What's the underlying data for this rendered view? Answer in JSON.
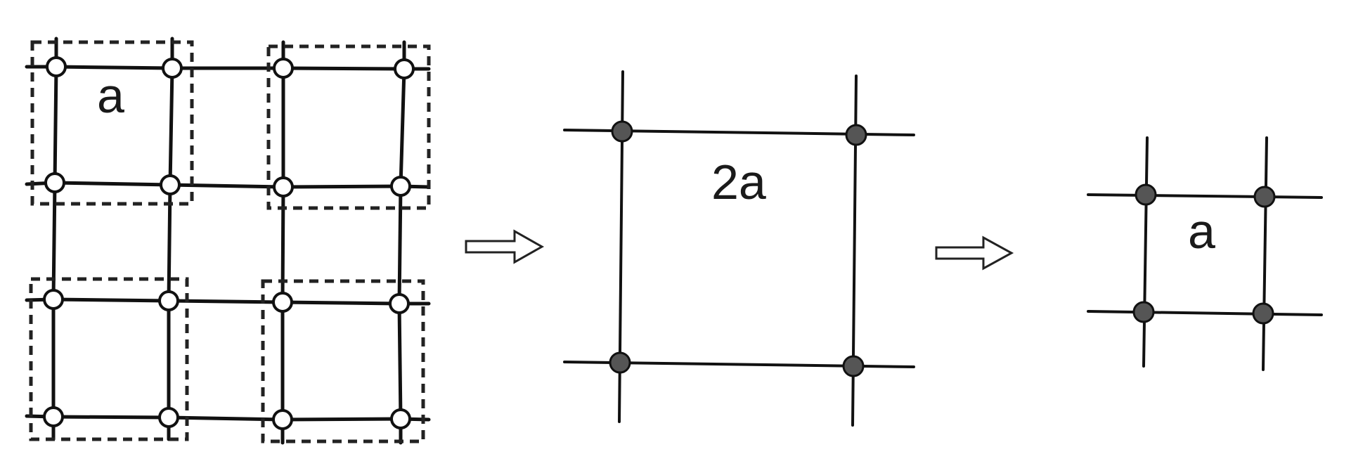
{
  "panels": {
    "original_lattice": {
      "spacing_label": "a",
      "site_style": "open-circle",
      "grid_size": "4x4"
    },
    "blocked_lattice": {
      "spacing_label": "2a",
      "site_style": "filled-circle",
      "grid_size": "2x2"
    },
    "rescaled_lattice": {
      "spacing_label": "a",
      "site_style": "filled-circle",
      "grid_size": "2x2"
    }
  },
  "arrows": [
    {
      "icon": "hollow-right-arrow-icon"
    },
    {
      "icon": "hollow-right-arrow-icon"
    }
  ],
  "colors": {
    "line": "#111111",
    "open_site_fill": "#ffffff",
    "filled_site_fill": "#555555",
    "block_outline": "#222222"
  }
}
